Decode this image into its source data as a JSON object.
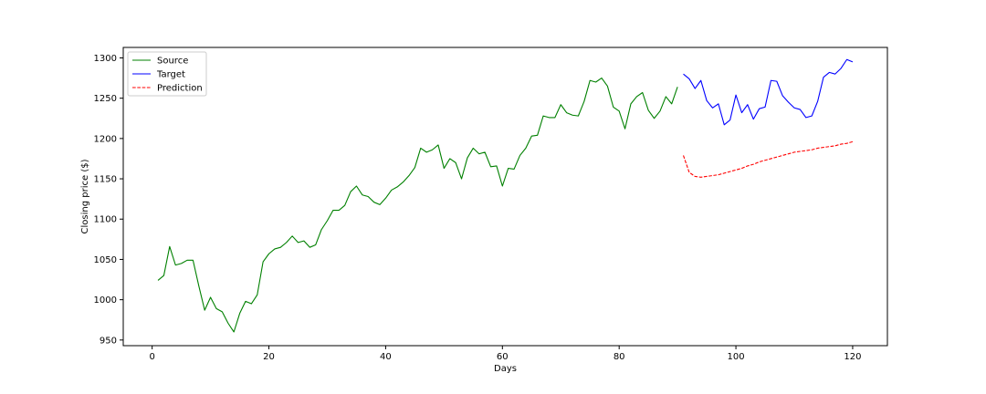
{
  "chart_data": {
    "type": "line",
    "title": "",
    "xlabel": "Days",
    "ylabel": "Closing price ($)",
    "xlim": [
      -4.95,
      125.95
    ],
    "ylim": [
      943,
      1313
    ],
    "xticks": [
      0,
      20,
      40,
      60,
      80,
      100,
      120
    ],
    "yticks": [
      950,
      1000,
      1050,
      1100,
      1150,
      1200,
      1250,
      1300
    ],
    "grid": false,
    "legend_position": "upper left",
    "series": [
      {
        "name": "Source",
        "color": "#008000",
        "style": "solid",
        "x": [
          1,
          2,
          3,
          4,
          5,
          6,
          7,
          8,
          9,
          10,
          11,
          12,
          13,
          14,
          15,
          16,
          17,
          18,
          19,
          20,
          21,
          22,
          23,
          24,
          25,
          26,
          27,
          28,
          29,
          30,
          31,
          32,
          33,
          34,
          35,
          36,
          37,
          38,
          39,
          40,
          41,
          42,
          43,
          44,
          45,
          46,
          47,
          48,
          49,
          50,
          51,
          52,
          53,
          54,
          55,
          56,
          57,
          58,
          59,
          60,
          61,
          62,
          63,
          64,
          65,
          66,
          67,
          68,
          69,
          70,
          71,
          72,
          73,
          74,
          75,
          76,
          77,
          78,
          79,
          80,
          81,
          82,
          83,
          84,
          85,
          86,
          87,
          88,
          89,
          90
        ],
        "y": [
          1024,
          1030,
          1066,
          1043,
          1045,
          1049,
          1049,
          1017,
          987,
          1003,
          989,
          985,
          971,
          960,
          983,
          998,
          995,
          1006,
          1047,
          1057,
          1063,
          1065,
          1071,
          1079,
          1071,
          1073,
          1065,
          1068,
          1087,
          1098,
          1111,
          1111,
          1117,
          1134,
          1141,
          1130,
          1128,
          1121,
          1118,
          1126,
          1136,
          1140,
          1146,
          1154,
          1164,
          1188,
          1183,
          1186,
          1192,
          1163,
          1175,
          1170,
          1150,
          1176,
          1188,
          1181,
          1183,
          1165,
          1166,
          1141,
          1163,
          1162,
          1179,
          1188,
          1203,
          1204,
          1228,
          1226,
          1226,
          1242,
          1232,
          1229,
          1228,
          1246,
          1272,
          1270,
          1275,
          1265,
          1239,
          1234,
          1212,
          1243,
          1252,
          1257,
          1235,
          1225,
          1234,
          1252,
          1243,
          1264
        ]
      },
      {
        "name": "Target",
        "color": "#0000ff",
        "style": "solid",
        "x": [
          91,
          92,
          93,
          94,
          95,
          96,
          97,
          98,
          99,
          100,
          101,
          102,
          103,
          104,
          105,
          106,
          107,
          108,
          109,
          110,
          111,
          112,
          113,
          114,
          115,
          116,
          117,
          118,
          119,
          120
        ],
        "y": [
          1280,
          1274,
          1262,
          1272,
          1247,
          1238,
          1243,
          1217,
          1223,
          1254,
          1232,
          1242,
          1224,
          1237,
          1239,
          1272,
          1271,
          1253,
          1245,
          1238,
          1236,
          1226,
          1228,
          1246,
          1276,
          1282,
          1280,
          1287,
          1298,
          1295
        ]
      },
      {
        "name": "Prediction",
        "color": "#ff0000",
        "style": "dashed",
        "x": [
          91,
          92,
          93,
          94,
          95,
          96,
          97,
          98,
          99,
          100,
          101,
          102,
          103,
          104,
          105,
          106,
          107,
          108,
          109,
          110,
          111,
          112,
          113,
          114,
          115,
          116,
          117,
          118,
          119,
          120
        ],
        "y": [
          1179,
          1158,
          1153,
          1152,
          1153,
          1154,
          1155,
          1157,
          1159,
          1161,
          1163,
          1166,
          1168,
          1171,
          1173,
          1175,
          1177,
          1179,
          1181,
          1183,
          1184,
          1185,
          1186,
          1188,
          1189,
          1190,
          1191,
          1193,
          1194,
          1196
        ]
      }
    ]
  }
}
